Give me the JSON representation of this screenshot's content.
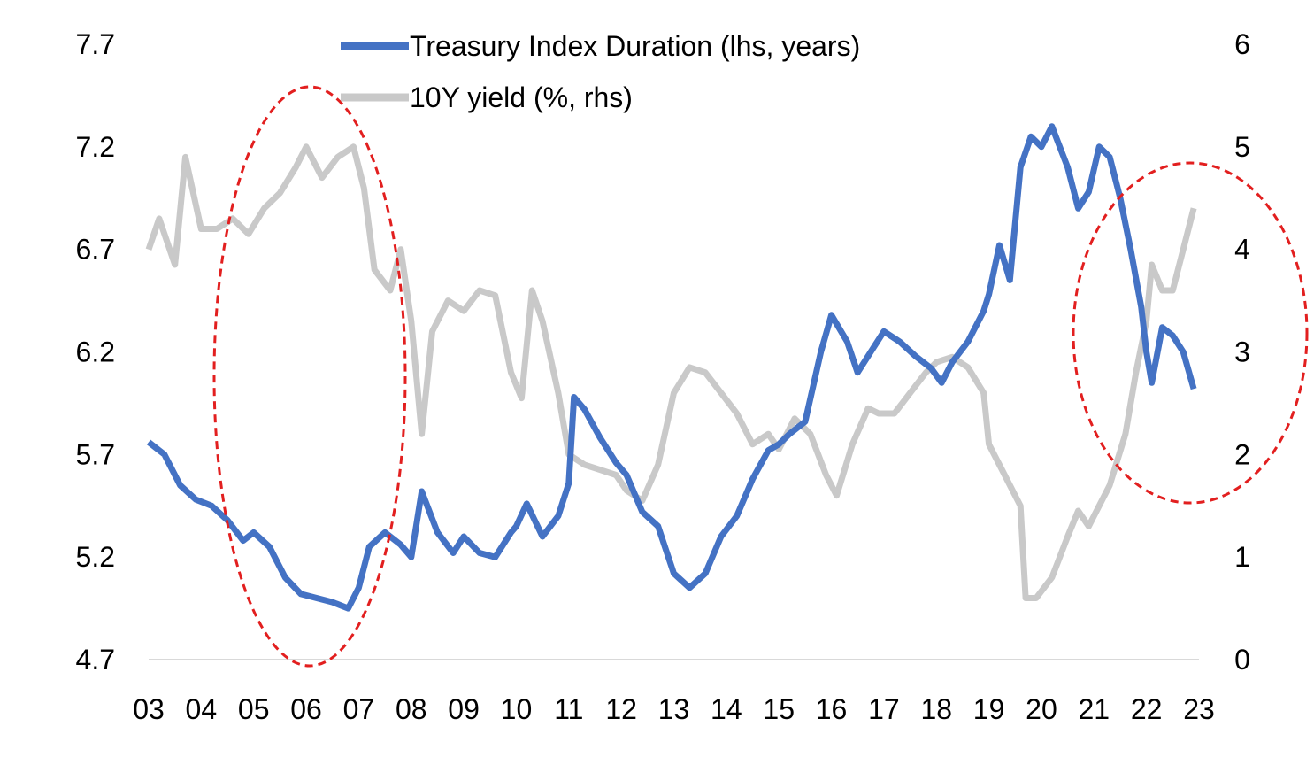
{
  "chart_data": {
    "type": "line",
    "title": "",
    "x_categories": [
      "03",
      "04",
      "05",
      "06",
      "07",
      "08",
      "09",
      "10",
      "11",
      "12",
      "13",
      "14",
      "15",
      "16",
      "17",
      "18",
      "19",
      "20",
      "21",
      "22",
      "23"
    ],
    "left_axis": {
      "ticks": [
        "4.7",
        "5.2",
        "5.7",
        "6.2",
        "6.7",
        "7.2",
        "7.7"
      ],
      "range": [
        4.7,
        7.7
      ]
    },
    "right_axis": {
      "ticks": [
        "0",
        "1",
        "2",
        "3",
        "4",
        "5",
        "6"
      ],
      "range": [
        0,
        6
      ]
    },
    "legend": {
      "placement": "top-center"
    },
    "series": [
      {
        "name": "Treasury Index Duration (lhs, years)",
        "axis": "left",
        "color": "#4472C4",
        "points": [
          [
            2003.0,
            5.76
          ],
          [
            2003.3,
            5.7
          ],
          [
            2003.6,
            5.55
          ],
          [
            2003.9,
            5.48
          ],
          [
            2004.2,
            5.45
          ],
          [
            2004.5,
            5.38
          ],
          [
            2004.8,
            5.28
          ],
          [
            2005.0,
            5.32
          ],
          [
            2005.3,
            5.25
          ],
          [
            2005.6,
            5.1
          ],
          [
            2005.9,
            5.02
          ],
          [
            2006.2,
            5.0
          ],
          [
            2006.5,
            4.98
          ],
          [
            2006.8,
            4.95
          ],
          [
            2007.0,
            5.05
          ],
          [
            2007.2,
            5.25
          ],
          [
            2007.5,
            5.32
          ],
          [
            2007.8,
            5.26
          ],
          [
            2008.0,
            5.2
          ],
          [
            2008.2,
            5.52
          ],
          [
            2008.5,
            5.32
          ],
          [
            2008.8,
            5.22
          ],
          [
            2009.0,
            5.3
          ],
          [
            2009.3,
            5.22
          ],
          [
            2009.6,
            5.2
          ],
          [
            2009.9,
            5.32
          ],
          [
            2010.0,
            5.35
          ],
          [
            2010.2,
            5.46
          ],
          [
            2010.5,
            5.3
          ],
          [
            2010.8,
            5.4
          ],
          [
            2011.0,
            5.56
          ],
          [
            2011.1,
            5.98
          ],
          [
            2011.3,
            5.92
          ],
          [
            2011.6,
            5.78
          ],
          [
            2011.9,
            5.66
          ],
          [
            2012.1,
            5.6
          ],
          [
            2012.4,
            5.42
          ],
          [
            2012.7,
            5.35
          ],
          [
            2013.0,
            5.12
          ],
          [
            2013.3,
            5.05
          ],
          [
            2013.6,
            5.12
          ],
          [
            2013.9,
            5.3
          ],
          [
            2014.2,
            5.4
          ],
          [
            2014.5,
            5.58
          ],
          [
            2014.8,
            5.72
          ],
          [
            2015.0,
            5.75
          ],
          [
            2015.2,
            5.8
          ],
          [
            2015.5,
            5.86
          ],
          [
            2015.8,
            6.2
          ],
          [
            2016.0,
            6.38
          ],
          [
            2016.3,
            6.25
          ],
          [
            2016.5,
            6.1
          ],
          [
            2016.8,
            6.22
          ],
          [
            2017.0,
            6.3
          ],
          [
            2017.3,
            6.25
          ],
          [
            2017.6,
            6.18
          ],
          [
            2017.9,
            6.12
          ],
          [
            2018.1,
            6.05
          ],
          [
            2018.3,
            6.15
          ],
          [
            2018.6,
            6.25
          ],
          [
            2018.9,
            6.4
          ],
          [
            2019.0,
            6.48
          ],
          [
            2019.2,
            6.72
          ],
          [
            2019.4,
            6.55
          ],
          [
            2019.6,
            7.1
          ],
          [
            2019.8,
            7.25
          ],
          [
            2020.0,
            7.2
          ],
          [
            2020.2,
            7.3
          ],
          [
            2020.5,
            7.1
          ],
          [
            2020.7,
            6.9
          ],
          [
            2020.9,
            6.98
          ],
          [
            2021.1,
            7.2
          ],
          [
            2021.3,
            7.15
          ],
          [
            2021.5,
            6.95
          ],
          [
            2021.7,
            6.7
          ],
          [
            2021.9,
            6.42
          ],
          [
            2022.0,
            6.2
          ],
          [
            2022.1,
            6.05
          ],
          [
            2022.3,
            6.32
          ],
          [
            2022.5,
            6.28
          ],
          [
            2022.7,
            6.2
          ],
          [
            2022.9,
            6.02
          ]
        ]
      },
      {
        "name": "10Y yield (%, rhs)",
        "axis": "right",
        "color": "#C9C9C9",
        "points": [
          [
            2003.0,
            4.0
          ],
          [
            2003.2,
            4.3
          ],
          [
            2003.5,
            3.85
          ],
          [
            2003.7,
            4.9
          ],
          [
            2004.0,
            4.2
          ],
          [
            2004.3,
            4.2
          ],
          [
            2004.6,
            4.3
          ],
          [
            2004.9,
            4.15
          ],
          [
            2005.2,
            4.4
          ],
          [
            2005.5,
            4.55
          ],
          [
            2005.8,
            4.8
          ],
          [
            2006.0,
            5.0
          ],
          [
            2006.3,
            4.7
          ],
          [
            2006.6,
            4.9
          ],
          [
            2006.9,
            5.0
          ],
          [
            2007.1,
            4.6
          ],
          [
            2007.3,
            3.8
          ],
          [
            2007.6,
            3.6
          ],
          [
            2007.8,
            4.0
          ],
          [
            2008.0,
            3.3
          ],
          [
            2008.2,
            2.2
          ],
          [
            2008.4,
            3.2
          ],
          [
            2008.7,
            3.5
          ],
          [
            2009.0,
            3.4
          ],
          [
            2009.3,
            3.6
          ],
          [
            2009.6,
            3.55
          ],
          [
            2009.9,
            2.8
          ],
          [
            2010.1,
            2.55
          ],
          [
            2010.3,
            3.6
          ],
          [
            2010.5,
            3.3
          ],
          [
            2010.8,
            2.6
          ],
          [
            2011.0,
            2.0
          ],
          [
            2011.3,
            1.9
          ],
          [
            2011.6,
            1.85
          ],
          [
            2011.9,
            1.8
          ],
          [
            2012.1,
            1.65
          ],
          [
            2012.4,
            1.55
          ],
          [
            2012.7,
            1.9
          ],
          [
            2013.0,
            2.6
          ],
          [
            2013.3,
            2.85
          ],
          [
            2013.6,
            2.8
          ],
          [
            2013.9,
            2.6
          ],
          [
            2014.2,
            2.4
          ],
          [
            2014.5,
            2.1
          ],
          [
            2014.8,
            2.2
          ],
          [
            2015.0,
            2.05
          ],
          [
            2015.3,
            2.35
          ],
          [
            2015.6,
            2.2
          ],
          [
            2015.9,
            1.8
          ],
          [
            2016.1,
            1.6
          ],
          [
            2016.4,
            2.1
          ],
          [
            2016.7,
            2.45
          ],
          [
            2016.9,
            2.4
          ],
          [
            2017.2,
            2.4
          ],
          [
            2017.5,
            2.6
          ],
          [
            2017.8,
            2.8
          ],
          [
            2018.0,
            2.9
          ],
          [
            2018.3,
            2.95
          ],
          [
            2018.6,
            2.85
          ],
          [
            2018.9,
            2.6
          ],
          [
            2019.0,
            2.1
          ],
          [
            2019.3,
            1.8
          ],
          [
            2019.6,
            1.5
          ],
          [
            2019.7,
            0.6
          ],
          [
            2019.9,
            0.6
          ],
          [
            2020.2,
            0.8
          ],
          [
            2020.5,
            1.2
          ],
          [
            2020.7,
            1.45
          ],
          [
            2020.9,
            1.3
          ],
          [
            2021.1,
            1.5
          ],
          [
            2021.3,
            1.7
          ],
          [
            2021.6,
            2.2
          ],
          [
            2021.8,
            2.8
          ],
          [
            2022.0,
            3.3
          ],
          [
            2022.1,
            3.85
          ],
          [
            2022.3,
            3.6
          ],
          [
            2022.5,
            3.6
          ],
          [
            2022.7,
            4.0
          ],
          [
            2022.9,
            4.4
          ]
        ]
      }
    ],
    "annotations": [
      {
        "shape": "dashed-ellipse",
        "color": "#E21F1F"
      },
      {
        "shape": "dashed-ellipse",
        "color": "#E21F1F"
      }
    ],
    "grid": false
  }
}
